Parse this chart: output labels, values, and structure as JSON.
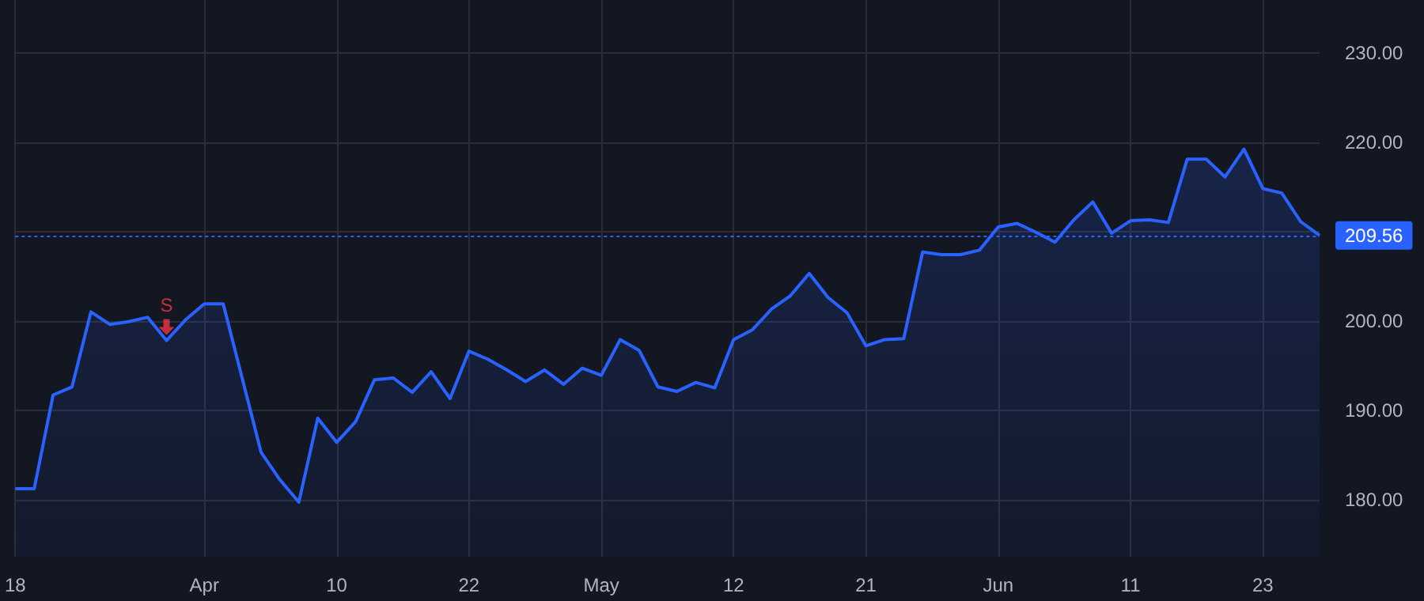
{
  "chart_data": {
    "type": "area",
    "categories": [
      "18",
      null,
      null,
      null,
      null,
      null,
      null,
      null,
      null,
      null,
      "Apr",
      null,
      null,
      null,
      null,
      null,
      null,
      "10",
      null,
      null,
      null,
      null,
      null,
      null,
      "22",
      null,
      null,
      null,
      null,
      null,
      null,
      "May",
      null,
      null,
      null,
      null,
      null,
      null,
      "12",
      null,
      null,
      null,
      null,
      null,
      null,
      "21",
      null,
      null,
      null,
      null,
      null,
      null,
      "Jun",
      null,
      null,
      null,
      null,
      null,
      null,
      "11",
      null,
      null,
      null,
      null,
      null,
      null,
      "23",
      null,
      null,
      null
    ],
    "series": [
      {
        "color": "#2962ff",
        "values": [
          181.2,
          181.2,
          191.7,
          192.6,
          201.0,
          199.6,
          199.9,
          200.4,
          197.8,
          200.1,
          201.9,
          201.9,
          193.6,
          185.3,
          182.2,
          179.7,
          189.1,
          186.4,
          188.7,
          193.4,
          193.6,
          192.0,
          194.3,
          191.3,
          196.6,
          195.7,
          194.5,
          193.2,
          194.5,
          192.9,
          194.7,
          193.9,
          197.9,
          196.7,
          192.6,
          192.1,
          193.1,
          192.5,
          197.9,
          199.0,
          201.3,
          202.8,
          205.3,
          202.6,
          200.9,
          197.2,
          197.9,
          198.0,
          207.7,
          207.4,
          207.4,
          207.9,
          210.5,
          210.9,
          209.9,
          208.8,
          211.3,
          213.3,
          209.8,
          211.2,
          211.3,
          211.0,
          218.1,
          218.1,
          216.1,
          219.2,
          214.8,
          214.3,
          211.1,
          209.56
        ]
      },
      {
        "type": "scatter",
        "color": "#f23645",
        "values": [
          null,
          null,
          null,
          null,
          null,
          null,
          null,
          null,
          199.3,
          null,
          null,
          null,
          null,
          null,
          null,
          null,
          null,
          null,
          null,
          null,
          null,
          null,
          null,
          null,
          null,
          null,
          null,
          null,
          null,
          null,
          null,
          null,
          null,
          null,
          null,
          null,
          null,
          null,
          null,
          null,
          null,
          null,
          null,
          null,
          null,
          null,
          null,
          null,
          null,
          null,
          null,
          null,
          null,
          null,
          null,
          null,
          null,
          null,
          null,
          null,
          null,
          null,
          null,
          null,
          null,
          null,
          null,
          null,
          null,
          null
        ],
        "value_labels": [
          null,
          null,
          null,
          null,
          null,
          null,
          null,
          null,
          "S",
          null,
          null,
          null,
          null,
          null,
          null,
          null,
          null,
          null,
          null,
          null,
          null,
          null,
          null,
          null,
          null,
          null,
          null,
          null,
          null,
          null,
          null,
          null,
          null,
          null,
          null,
          null,
          null,
          null,
          null,
          null,
          null,
          null,
          null,
          null,
          null,
          null,
          null,
          null,
          null,
          null,
          null,
          null,
          null,
          null,
          null,
          null,
          null,
          null,
          null,
          null,
          null,
          null,
          null,
          null,
          null,
          null,
          null,
          null,
          null,
          null
        ]
      }
    ],
    "ylim": [
      173.6,
      235.9
    ],
    "yticks": [
      {
        "value": 180,
        "label": "180.00"
      },
      {
        "value": 190,
        "label": "190.00"
      },
      {
        "value": 200,
        "label": "200.00"
      },
      {
        "value": 210,
        "label": null
      },
      {
        "value": 220,
        "label": "220.00"
      },
      {
        "value": 230,
        "label": "230.00"
      }
    ],
    "ref_lines": [
      {
        "axis": "y",
        "value": 209.56,
        "label": "209.56",
        "color": "#2962ff",
        "line_style": "dotted"
      }
    ],
    "grid": true
  }
}
